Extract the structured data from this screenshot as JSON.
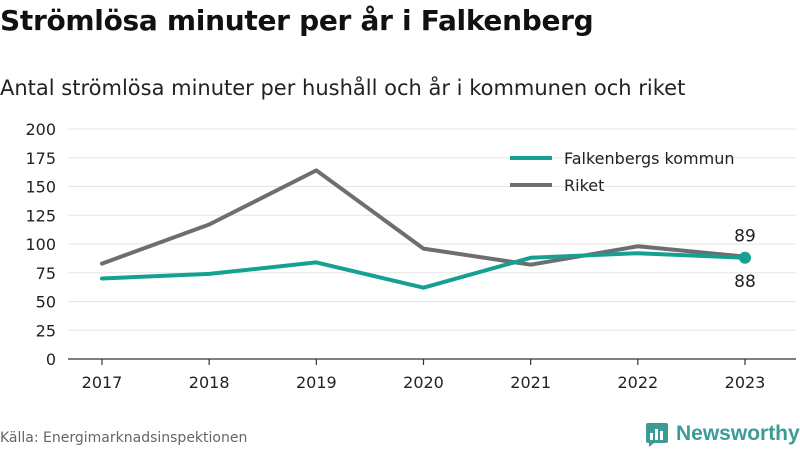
{
  "header": {
    "title": "Strömlösa minuter per år i Falkenberg",
    "subtitle": "Antal strömlösa minuter per hushåll och år i kommunen och riket"
  },
  "footer": {
    "source": "Källa: Energimarknadsinspektionen",
    "brand": "Newsworthy",
    "brand_icon": "bar-chart-icon"
  },
  "colors": {
    "falkenberg": "#169f93",
    "riket": "#6e6d72",
    "grid": "#e5e5e5",
    "axis": "#333333",
    "brand": "#3a9c95"
  },
  "chart_data": {
    "type": "line",
    "x": [
      "2017",
      "2018",
      "2019",
      "2020",
      "2021",
      "2022",
      "2023"
    ],
    "series": [
      {
        "name": "Falkenbergs kommun",
        "values": [
          70,
          74,
          84,
          62,
          88,
          92,
          88
        ],
        "color": "#169f93"
      },
      {
        "name": "Riket",
        "values": [
          83,
          117,
          164,
          96,
          82,
          98,
          89
        ],
        "color": "#6e6d72"
      }
    ],
    "ylim": [
      0,
      200
    ],
    "yticks": [
      0,
      25,
      50,
      75,
      100,
      125,
      150,
      175,
      200
    ],
    "grid": true,
    "legend_position": "top-right",
    "annotations": [
      {
        "series": "Riket",
        "x": "2023",
        "text": "89",
        "position": "above"
      },
      {
        "series": "Falkenbergs kommun",
        "x": "2023",
        "text": "88",
        "position": "below"
      }
    ]
  }
}
